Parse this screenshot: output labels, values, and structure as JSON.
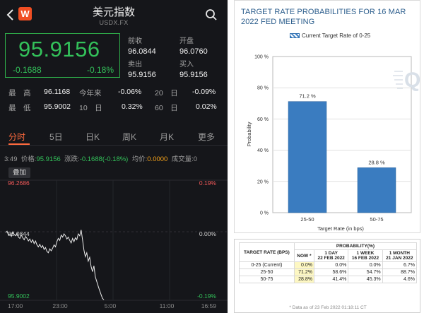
{
  "quote": {
    "title": "美元指数",
    "code": "USDX.FX",
    "price": "95.9156",
    "change": "-0.1688",
    "change_pct": "-0.18%",
    "prev_close_label": "前收",
    "prev_close": "96.0844",
    "open_label": "开盘",
    "open": "96.0760",
    "sell_label": "卖出",
    "sell": "95.9156",
    "buy_label": "买入",
    "buy": "95.9156",
    "logo_letter": "W",
    "accent_green": "#33c15a",
    "accent_orange": "#ff6a3d"
  },
  "stats": {
    "high_label": "最　高",
    "high": "96.1168",
    "low_label": "最　低",
    "low": "95.9002",
    "ytd_label": "今年来",
    "ytd": "-0.06%",
    "d10_label": "10　日",
    "d10": "0.32%",
    "d20_label": "20　日",
    "d20": "-0.09%",
    "d60_label": "60　日",
    "d60": "0.02%"
  },
  "tabs": [
    "分时",
    "5日",
    "日K",
    "周K",
    "月K",
    "更多"
  ],
  "info": {
    "time": "3:49",
    "price_label": "价格:",
    "price": "95.9156",
    "change_label": "涨跌:",
    "change": "-0.1688(-0.18%)",
    "avg_label": "均价:",
    "avg": "0.0000",
    "volume_label": "成交量:",
    "volume": "0"
  },
  "overlay_label": "叠加",
  "intraday": {
    "top_price": "96.2686",
    "top_pct": "0.19%",
    "mid_price": "96.0844",
    "mid_pct": "0.00%",
    "bottom_price": "95.9002",
    "bottom_pct": "-0.19%",
    "time_labels": [
      "17:00",
      "23:00",
      "5:00",
      "11:00",
      "16:59"
    ],
    "base": 96.0844,
    "range": [
      95.9002,
      96.2686
    ],
    "series": [
      96.108,
      96.112,
      96.1,
      96.104,
      96.096,
      96.11,
      96.102,
      96.098,
      96.106,
      96.094,
      96.09,
      96.1,
      96.092,
      96.086,
      96.096,
      96.09,
      96.082,
      96.088,
      96.078,
      96.086,
      96.074,
      96.082,
      96.07,
      96.064,
      96.072,
      96.062,
      96.068,
      96.056,
      96.062,
      96.05,
      96.046,
      96.058,
      96.052,
      96.06,
      96.07,
      96.064,
      96.08,
      96.09,
      96.084,
      96.1,
      96.094,
      96.104,
      96.098,
      96.088,
      96.094,
      96.084,
      96.076,
      96.09,
      96.08,
      96.092,
      96.086,
      96.104,
      96.098,
      96.116,
      96.086,
      96.054,
      96.034,
      96.046,
      96.02,
      96.032,
      96.004,
      95.988,
      96.006,
      95.972,
      95.958,
      95.944,
      95.93,
      95.918,
      95.906,
      95.902
    ]
  },
  "fedwatch": {
    "title": "TARGET RATE PROBABILITIES FOR 16 MAR 2022 FED MEETING",
    "legend": "Current Target Rate of 0-25",
    "watermark": "Q",
    "bar_color": "#3a7cc0"
  },
  "chart_data": {
    "type": "bar",
    "title": "TARGET RATE PROBABILITIES FOR 16 MAR 2022 FED MEETING",
    "categories": [
      "25-50",
      "50-75"
    ],
    "values": [
      71.2,
      28.8
    ],
    "value_labels": [
      "71.2 %",
      "28.8 %"
    ],
    "xlabel": "Target Rate (in bps)",
    "ylabel": "Probability",
    "ylim": [
      0,
      100
    ],
    "yticks": [
      "0 %",
      "20 %",
      "40 %",
      "60 %",
      "80 %",
      "100 %"
    ],
    "legend": [
      "Current Target Rate of 0-25"
    ],
    "grid": true
  },
  "prob_table": {
    "target_header": "TARGET RATE (BPS)",
    "prob_header": "PROBABILITY(%)",
    "col_now": "NOW *",
    "col_1d": [
      "1 DAY",
      "22 FEB 2022"
    ],
    "col_1w": [
      "1 WEEK",
      "16 FEB 2022"
    ],
    "col_1m": [
      "1 MONTH",
      "21 JAN 2022"
    ],
    "rows": [
      {
        "rate": "0-25 (Current)",
        "now": "0.0%",
        "d1": "0.0%",
        "w1": "0.0%",
        "m1": "6.7%"
      },
      {
        "rate": "25-50",
        "now": "71.2%",
        "d1": "58.6%",
        "w1": "54.7%",
        "m1": "88.7%"
      },
      {
        "rate": "50-75",
        "now": "28.8%",
        "d1": "41.4%",
        "w1": "45.3%",
        "m1": "4.6%"
      }
    ],
    "footnote": "* Data as of 23 Feb 2022 01:18:11 CT"
  }
}
